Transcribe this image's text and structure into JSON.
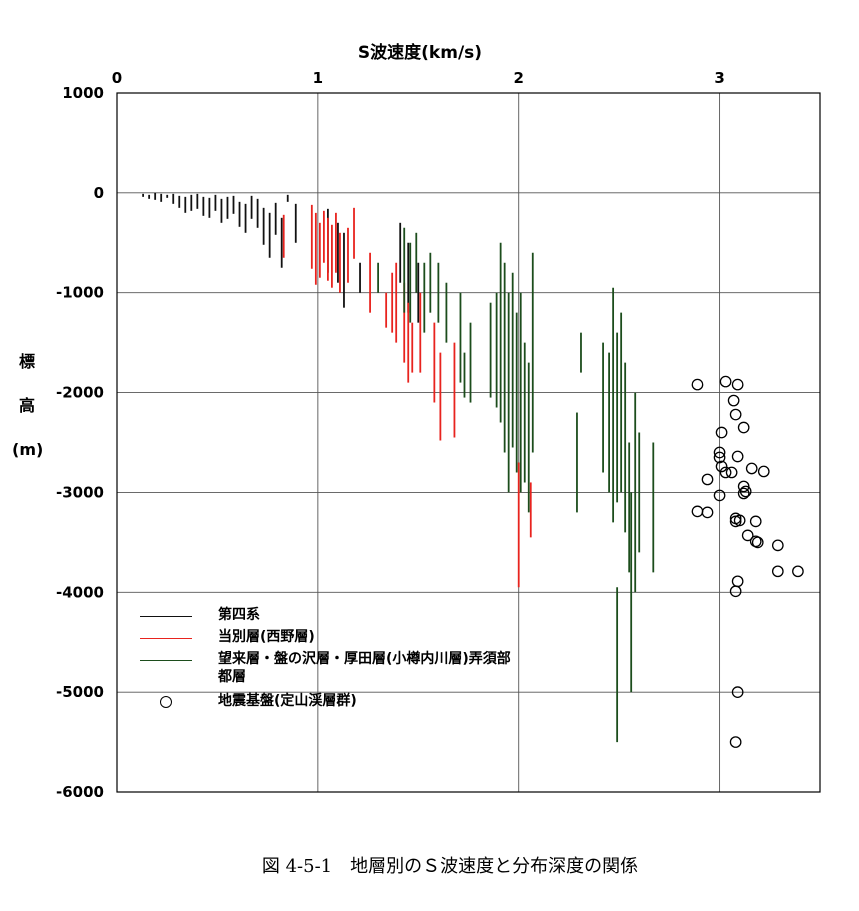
{
  "chart_data": {
    "type": "scatter",
    "title": "",
    "xlabel": "S波速度(km/s)",
    "ylabel_chars": [
      "標",
      "高",
      "(m)"
    ],
    "xlim": [
      0,
      3.5
    ],
    "ylim": [
      -6000,
      1000
    ],
    "x_ticks": [
      "0",
      "1",
      "2",
      "3"
    ],
    "y_ticks": [
      "1000",
      "0",
      "-1000",
      "-2000",
      "-3000",
      "-4000",
      "-5000",
      "-6000"
    ],
    "grid": true,
    "legend_position": "lower-left",
    "series": [
      {
        "name": "第四系",
        "color": "#111111",
        "marker": "vertical-bar",
        "segments": [
          [
            0.13,
            -10,
            -40
          ],
          [
            0.16,
            -20,
            -60
          ],
          [
            0.19,
            0,
            -70
          ],
          [
            0.22,
            -10,
            -90
          ],
          [
            0.25,
            -20,
            -50
          ],
          [
            0.28,
            -10,
            -110
          ],
          [
            0.31,
            -30,
            -150
          ],
          [
            0.34,
            -40,
            -200
          ],
          [
            0.37,
            -20,
            -180
          ],
          [
            0.4,
            -10,
            -160
          ],
          [
            0.43,
            -40,
            -230
          ],
          [
            0.46,
            -50,
            -250
          ],
          [
            0.49,
            -20,
            -180
          ],
          [
            0.52,
            -60,
            -300
          ],
          [
            0.55,
            -40,
            -260
          ],
          [
            0.58,
            -30,
            -210
          ],
          [
            0.61,
            -90,
            -340
          ],
          [
            0.64,
            -110,
            -400
          ],
          [
            0.67,
            -30,
            -260
          ],
          [
            0.7,
            -60,
            -350
          ],
          [
            0.73,
            -150,
            -520
          ],
          [
            0.76,
            -200,
            -650
          ],
          [
            0.79,
            -100,
            -420
          ],
          [
            0.82,
            -250,
            -750
          ],
          [
            0.85,
            -20,
            -90
          ],
          [
            0.89,
            -110,
            -500
          ],
          [
            1.05,
            -160,
            -800
          ],
          [
            1.1,
            -300,
            -900
          ],
          [
            1.13,
            -400,
            -1150
          ],
          [
            1.21,
            -700,
            -1000
          ],
          [
            1.41,
            -300,
            -900
          ],
          [
            1.45,
            -500,
            -1200
          ],
          [
            1.5,
            -700,
            -1300
          ]
        ]
      },
      {
        "name": "当別層(西野層)",
        "color": "#e8231e",
        "marker": "vertical-bar",
        "segments": [
          [
            0.83,
            -220,
            -650
          ],
          [
            0.97,
            -120,
            -760
          ],
          [
            0.99,
            -200,
            -920
          ],
          [
            1.01,
            -300,
            -850
          ],
          [
            1.03,
            -180,
            -700
          ],
          [
            1.05,
            -250,
            -880
          ],
          [
            1.07,
            -320,
            -950
          ],
          [
            1.09,
            -200,
            -800
          ],
          [
            1.11,
            -400,
            -1000
          ],
          [
            1.15,
            -350,
            -900
          ],
          [
            1.18,
            -150,
            -660
          ],
          [
            1.26,
            -600,
            -1200
          ],
          [
            1.34,
            -1000,
            -1350
          ],
          [
            1.37,
            -800,
            -1400
          ],
          [
            1.39,
            -700,
            -1500
          ],
          [
            1.43,
            -900,
            -1700
          ],
          [
            1.45,
            -1100,
            -1900
          ],
          [
            1.47,
            -1300,
            -1800
          ],
          [
            1.51,
            -1000,
            -1800
          ],
          [
            1.58,
            -1300,
            -2100
          ],
          [
            1.61,
            -1600,
            -2480
          ],
          [
            1.68,
            -1500,
            -2450
          ],
          [
            2.0,
            -2700,
            -3950
          ],
          [
            2.06,
            -2900,
            -3450
          ]
        ]
      },
      {
        "name": "望来層・盤の沢層・厚田層(小樽内川層)弄須部都層",
        "color": "#1c4d1c",
        "marker": "vertical-bar",
        "segments": [
          [
            1.3,
            -700,
            -1000
          ],
          [
            1.43,
            -350,
            -1200
          ],
          [
            1.46,
            -500,
            -1300
          ],
          [
            1.49,
            -400,
            -1000
          ],
          [
            1.53,
            -700,
            -1400
          ],
          [
            1.56,
            -600,
            -1200
          ],
          [
            1.6,
            -700,
            -1300
          ],
          [
            1.64,
            -900,
            -1500
          ],
          [
            1.71,
            -1000,
            -1900
          ],
          [
            1.73,
            -1600,
            -2050
          ],
          [
            1.76,
            -1300,
            -2100
          ],
          [
            1.86,
            -1100,
            -2050
          ],
          [
            1.89,
            -1000,
            -2150
          ],
          [
            1.91,
            -500,
            -2300
          ],
          [
            1.93,
            -700,
            -2600
          ],
          [
            1.95,
            -1000,
            -3000
          ],
          [
            1.97,
            -800,
            -2550
          ],
          [
            1.99,
            -1200,
            -2800
          ],
          [
            2.01,
            -1000,
            -3000
          ],
          [
            2.03,
            -1500,
            -2900
          ],
          [
            2.05,
            -1700,
            -3200
          ],
          [
            2.07,
            -600,
            -2600
          ],
          [
            2.29,
            -2200,
            -3200
          ],
          [
            2.31,
            -1400,
            -1800
          ],
          [
            2.42,
            -1500,
            -2800
          ],
          [
            2.45,
            -1600,
            -3000
          ],
          [
            2.47,
            -950,
            -3300
          ],
          [
            2.49,
            -1400,
            -3100
          ],
          [
            2.51,
            -1200,
            -3000
          ],
          [
            2.53,
            -1700,
            -3400
          ],
          [
            2.55,
            -2500,
            -3800
          ],
          [
            2.56,
            -3000,
            -5000
          ],
          [
            2.58,
            -2000,
            -4000
          ],
          [
            2.6,
            -2400,
            -3600
          ],
          [
            2.67,
            -2500,
            -3800
          ],
          [
            2.49,
            -3950,
            -5500
          ]
        ]
      },
      {
        "name": "地震基盤(定山渓層群)",
        "color": "#000000",
        "marker": "open-circle",
        "points": [
          [
            2.89,
            -1920
          ],
          [
            3.03,
            -1890
          ],
          [
            3.09,
            -1920
          ],
          [
            3.07,
            -2080
          ],
          [
            3.08,
            -2220
          ],
          [
            3.12,
            -2350
          ],
          [
            3.01,
            -2400
          ],
          [
            3.0,
            -2600
          ],
          [
            3.0,
            -2650
          ],
          [
            3.09,
            -2640
          ],
          [
            3.01,
            -2740
          ],
          [
            3.16,
            -2760
          ],
          [
            3.03,
            -2800
          ],
          [
            3.06,
            -2800
          ],
          [
            3.22,
            -2790
          ],
          [
            2.94,
            -2870
          ],
          [
            3.12,
            -2940
          ],
          [
            3.13,
            -2990
          ],
          [
            3.12,
            -3010
          ],
          [
            3.0,
            -3030
          ],
          [
            2.89,
            -3190
          ],
          [
            2.94,
            -3200
          ],
          [
            3.08,
            -3260
          ],
          [
            3.1,
            -3280
          ],
          [
            3.08,
            -3290
          ],
          [
            3.18,
            -3290
          ],
          [
            3.14,
            -3430
          ],
          [
            3.18,
            -3490
          ],
          [
            3.19,
            -3500
          ],
          [
            3.29,
            -3530
          ],
          [
            3.29,
            -3790
          ],
          [
            3.39,
            -3790
          ],
          [
            3.09,
            -3890
          ],
          [
            3.08,
            -3990
          ],
          [
            3.09,
            -5000
          ],
          [
            3.08,
            -5500
          ]
        ]
      }
    ]
  },
  "caption": "図 4-5-1　地層別のＳ波速度と分布深度の関係"
}
